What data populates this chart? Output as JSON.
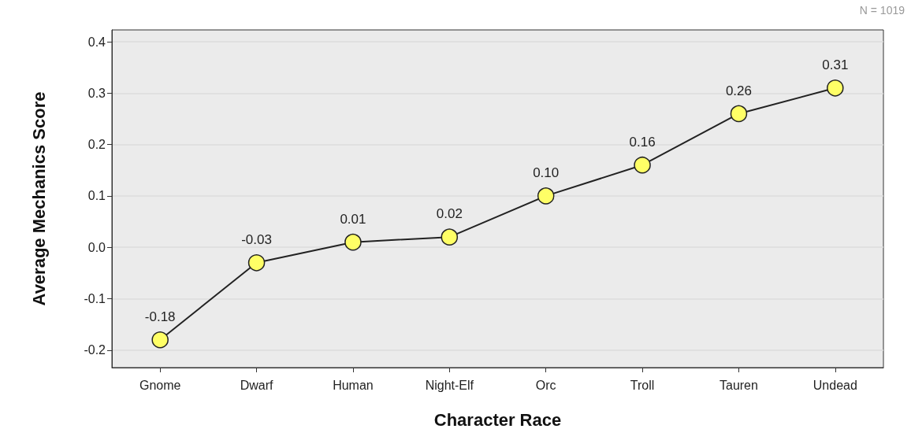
{
  "chart_data": {
    "type": "line",
    "xlabel": "Character Race",
    "ylabel": "Average Mechanics Score",
    "categories": [
      "Gnome",
      "Dwarf",
      "Human",
      "Night-Elf",
      "Orc",
      "Troll",
      "Tauren",
      "Undead"
    ],
    "series": [
      {
        "color": "#ffff66",
        "values": [
          -0.18,
          -0.03,
          0.01,
          0.02,
          0.1,
          0.16,
          0.26,
          0.31
        ],
        "value_labels": [
          "-0.18",
          "-0.03",
          "0.01",
          "0.02",
          "0.10",
          "0.16",
          "0.26",
          "0.31"
        ]
      }
    ],
    "ylim": [
      -0.234,
      0.423
    ],
    "yticks": [
      {
        "value": -0.2,
        "label": "-0.2"
      },
      {
        "value": -0.1,
        "label": "-0.1"
      },
      {
        "value": 0,
        "label": "0.0"
      },
      {
        "value": 0.1,
        "label": "0.1"
      },
      {
        "value": 0.2,
        "label": "0.2"
      },
      {
        "value": 0.3,
        "label": "0.3"
      },
      {
        "value": 0.4,
        "label": "0.4"
      }
    ],
    "grid": "y",
    "marker": "circle",
    "line_style": "solid",
    "annotations": [
      "N = 1019"
    ]
  }
}
